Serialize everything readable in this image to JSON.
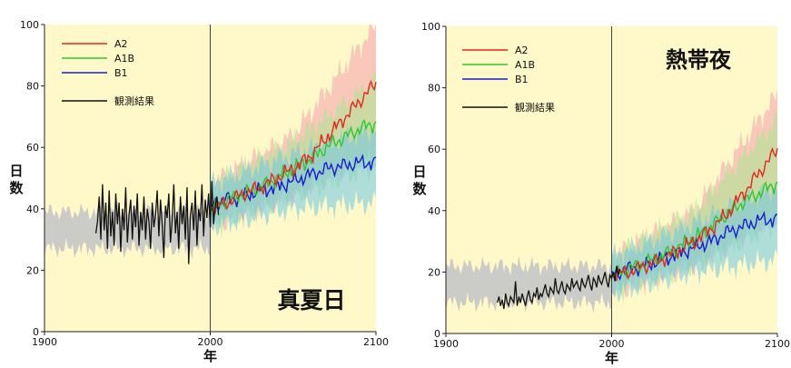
{
  "chart_data": [
    {
      "type": "line",
      "title": "真夏日",
      "xlabel": "年",
      "ylabel": "日数",
      "xlim": [
        1900,
        2100
      ],
      "ylim": [
        0,
        100
      ],
      "xticks": [
        "1900",
        "2000",
        "2100"
      ],
      "yticks": [
        "0",
        "20",
        "40",
        "60",
        "80",
        "100"
      ],
      "reference_line_x": 2000,
      "legend_position": "top-left",
      "legend": [
        "A2",
        "A1B",
        "B1",
        "観測結果"
      ],
      "colors": {
        "A2": "#e8261e",
        "A1B": "#2ec82e",
        "B1": "#1a1ad2",
        "observed": "#111111",
        "control_band": "#c8c8c8",
        "background": "#fff8c8"
      },
      "series": [
        {
          "name": "観測結果",
          "x_start": 1931,
          "x_end": 2005,
          "y": [
            32,
            36,
            44,
            30,
            48,
            33,
            42,
            27,
            46,
            31,
            39,
            28,
            45,
            35,
            42,
            26,
            40,
            33,
            47,
            29,
            38,
            43,
            30,
            41,
            34,
            45,
            28,
            39,
            33,
            44,
            30,
            40,
            36,
            27,
            42,
            34,
            38,
            46,
            31,
            43,
            35,
            24,
            41,
            37,
            45,
            29,
            36,
            48,
            32,
            39,
            27,
            44,
            35,
            41,
            30,
            47,
            22,
            38,
            42,
            33,
            46,
            28,
            40,
            36,
            48,
            31,
            43,
            37,
            45,
            34,
            49,
            35,
            41,
            44,
            38
          ]
        },
        {
          "name": "A2",
          "x": [
            2000,
            2010,
            2020,
            2030,
            2040,
            2050,
            2060,
            2070,
            2080,
            2090,
            2100
          ],
          "y": [
            40,
            42,
            45,
            47,
            50,
            53,
            57,
            63,
            69,
            75,
            81
          ]
        },
        {
          "name": "A1B",
          "x": [
            2000,
            2010,
            2020,
            2030,
            2040,
            2050,
            2060,
            2070,
            2080,
            2090,
            2100
          ],
          "y": [
            40,
            43,
            45,
            47,
            50,
            53,
            56,
            60,
            63,
            66,
            68
          ]
        },
        {
          "name": "B1",
          "x": [
            2000,
            2010,
            2020,
            2030,
            2040,
            2050,
            2060,
            2070,
            2080,
            2090,
            2100
          ],
          "y": [
            41,
            43,
            44,
            46,
            47,
            49,
            51,
            53,
            54,
            55,
            55
          ]
        }
      ],
      "control_band": {
        "x": [
          1900,
          2000
        ],
        "y_low": 27,
        "y_high": 39
      },
      "spread": [
        {
          "name": "A2",
          "x": [
            2000,
            2050,
            2100
          ],
          "low": [
            34,
            44,
            58
          ],
          "high": [
            48,
            64,
            100
          ]
        },
        {
          "name": "A1B",
          "x": [
            2000,
            2050,
            2100
          ],
          "low": [
            34,
            44,
            54
          ],
          "high": [
            48,
            62,
            82
          ]
        },
        {
          "name": "B1",
          "x": [
            2000,
            2050,
            2100
          ],
          "low": [
            34,
            40,
            42
          ],
          "high": [
            48,
            58,
            66
          ]
        }
      ]
    },
    {
      "type": "line",
      "title": "熱帯夜",
      "xlabel": "年",
      "ylabel": "日数",
      "xlim": [
        1900,
        2100
      ],
      "ylim": [
        0,
        100
      ],
      "xticks": [
        "1900",
        "2000",
        "2100"
      ],
      "yticks": [
        "0",
        "20",
        "40",
        "60",
        "80",
        "100"
      ],
      "reference_line_x": 2000,
      "legend_position": "top-left",
      "legend": [
        "A2",
        "A1B",
        "B1",
        "観測結果"
      ],
      "colors": {
        "A2": "#e8261e",
        "A1B": "#2ec82e",
        "B1": "#1a1ad2",
        "observed": "#111111",
        "control_band": "#c8c8c8",
        "background": "#fff8c8"
      },
      "series": [
        {
          "name": "観測結果",
          "x_start": 1931,
          "x_end": 2005,
          "y": [
            10,
            12,
            9,
            11,
            8,
            13,
            10,
            9,
            12,
            11,
            10,
            17,
            9,
            12,
            10,
            13,
            11,
            9,
            12,
            14,
            11,
            10,
            13,
            12,
            15,
            11,
            13,
            12,
            14,
            16,
            13,
            12,
            15,
            14,
            13,
            18,
            14,
            13,
            15,
            17,
            14,
            13,
            16,
            15,
            14,
            18,
            15,
            16,
            17,
            15,
            14,
            18,
            16,
            15,
            17,
            19,
            16,
            14,
            18,
            17,
            15,
            19,
            17,
            16,
            18,
            20,
            17,
            15,
            19,
            18,
            20,
            17,
            22,
            19,
            21
          ]
        },
        {
          "name": "A2",
          "x": [
            2000,
            2010,
            2020,
            2030,
            2040,
            2050,
            2060,
            2070,
            2080,
            2090,
            2100
          ],
          "y": [
            19,
            20,
            22,
            24,
            27,
            30,
            34,
            39,
            46,
            53,
            60
          ]
        },
        {
          "name": "A1B",
          "x": [
            2000,
            2010,
            2020,
            2030,
            2040,
            2050,
            2060,
            2070,
            2080,
            2090,
            2100
          ],
          "y": [
            19,
            21,
            23,
            25,
            28,
            31,
            35,
            39,
            43,
            46,
            49
          ]
        },
        {
          "name": "B1",
          "x": [
            2000,
            2010,
            2020,
            2030,
            2040,
            2050,
            2060,
            2070,
            2080,
            2090,
            2100
          ],
          "y": [
            19,
            21,
            22,
            24,
            26,
            28,
            30,
            33,
            35,
            37,
            37
          ]
        }
      ],
      "control_band": {
        "x": [
          1900,
          2000
        ],
        "y_low": 10,
        "y_high": 22
      },
      "spread": [
        {
          "name": "A2",
          "x": [
            2000,
            2050,
            2100
          ],
          "low": [
            13,
            22,
            38
          ],
          "high": [
            25,
            40,
            78
          ]
        },
        {
          "name": "A1B",
          "x": [
            2000,
            2050,
            2100
          ],
          "low": [
            13,
            22,
            36
          ],
          "high": [
            25,
            40,
            70
          ]
        },
        {
          "name": "B1",
          "x": [
            2000,
            2050,
            2100
          ],
          "low": [
            13,
            20,
            24
          ],
          "high": [
            25,
            36,
            48
          ]
        }
      ]
    }
  ]
}
